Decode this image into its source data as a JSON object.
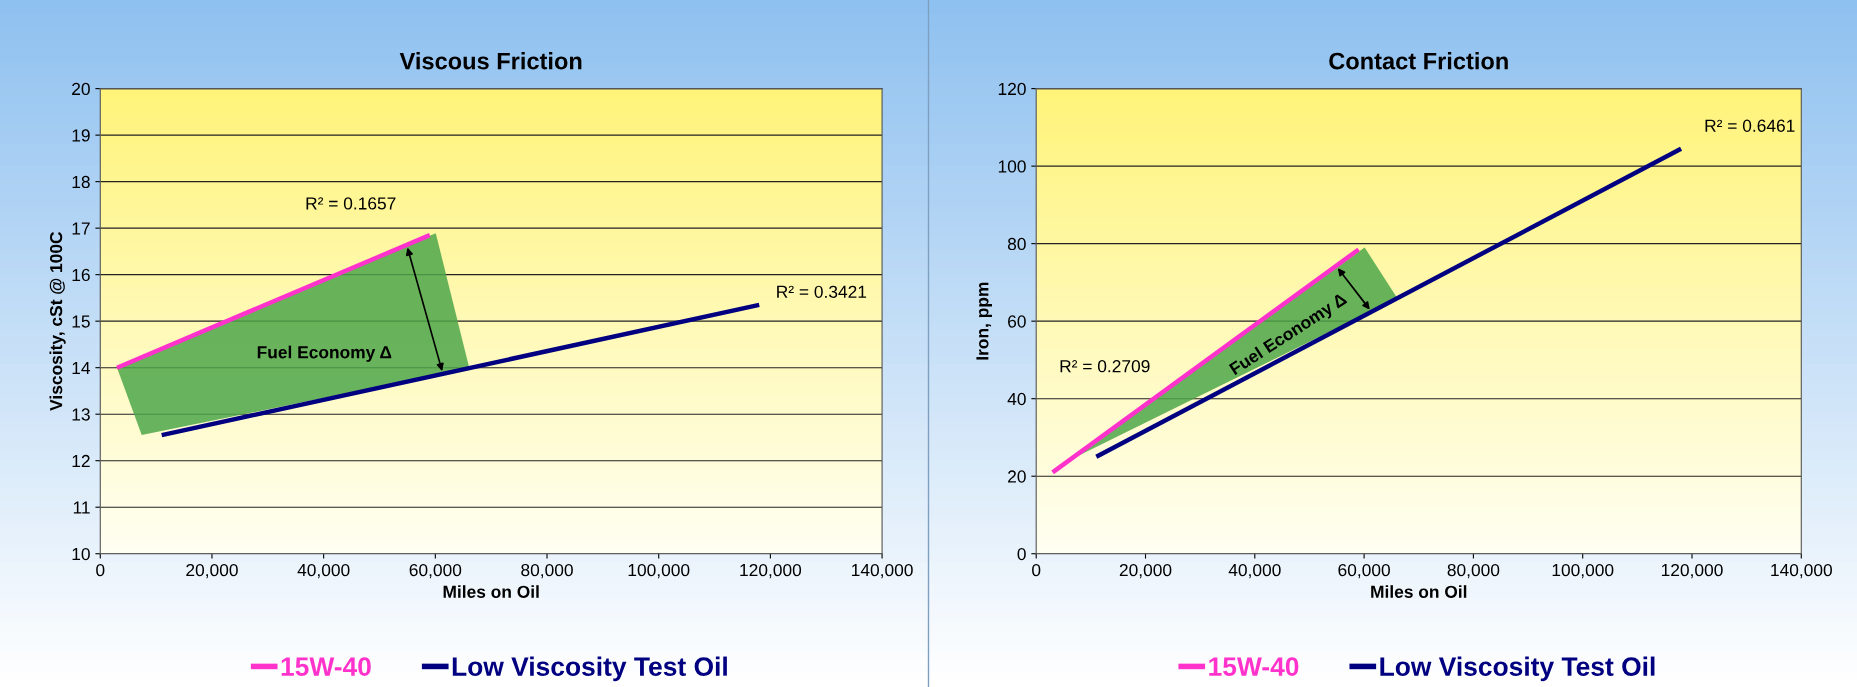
{
  "chart_data": [
    {
      "type": "line",
      "title": "Viscous Friction",
      "xlabel": "Miles on Oil",
      "ylabel": "Viscosity, cSt @ 100C",
      "series": [
        {
          "name": "15W-40",
          "color": "#ff33cc",
          "x": [
            3000,
            59000
          ],
          "values": [
            14.0,
            16.85
          ]
        },
        {
          "name": "Low Viscosity Test Oil",
          "color": "#000080",
          "x": [
            11000,
            118000
          ],
          "values": [
            12.55,
            15.35
          ]
        }
      ],
      "xlim": [
        0,
        140000
      ],
      "xticks": [
        {
          "value": 0,
          "label": "0"
        },
        {
          "value": 20000,
          "label": "20,000"
        },
        {
          "value": 40000,
          "label": "40,000"
        },
        {
          "value": 60000,
          "label": "60,000"
        },
        {
          "value": 80000,
          "label": "80,000"
        },
        {
          "value": 100000,
          "label": "100,000"
        },
        {
          "value": 120000,
          "label": "120,000"
        },
        {
          "value": 140000,
          "label": "140,000"
        }
      ],
      "ylim": [
        10,
        20
      ],
      "yticks": [
        10,
        11,
        12,
        13,
        14,
        15,
        16,
        17,
        18,
        19,
        20
      ],
      "grid": "y",
      "legend": "bottom",
      "marker": "none",
      "line_style": "solid",
      "annotations": [
        "R² = 0.1657",
        "R² = 0.3421",
        "Fuel Economy Δ"
      ]
    },
    {
      "type": "line",
      "title": "Contact Friction",
      "xlabel": "Miles on Oil",
      "ylabel": "Iron, ppm",
      "series": [
        {
          "name": "15W-40",
          "color": "#ff33cc",
          "x": [
            3000,
            59000
          ],
          "values": [
            21,
            78.5
          ]
        },
        {
          "name": "Low Viscosity Test Oil",
          "color": "#000080",
          "x": [
            11000,
            118000
          ],
          "values": [
            25,
            104.5
          ]
        }
      ],
      "xlim": [
        0,
        140000
      ],
      "xticks": [
        {
          "value": 0,
          "label": "0"
        },
        {
          "value": 20000,
          "label": "20,000"
        },
        {
          "value": 40000,
          "label": "40,000"
        },
        {
          "value": 60000,
          "label": "60,000"
        },
        {
          "value": 80000,
          "label": "80,000"
        },
        {
          "value": 100000,
          "label": "100,000"
        },
        {
          "value": 120000,
          "label": "120,000"
        },
        {
          "value": 140000,
          "label": "140,000"
        }
      ],
      "ylim": [
        0,
        120
      ],
      "yticks": [
        0,
        20,
        40,
        60,
        80,
        100,
        120
      ],
      "grid": "y",
      "legend": "bottom",
      "marker": "none",
      "line_style": "solid",
      "annotations": [
        "R² = 0.2709",
        "R² = 0.6461",
        "Fuel Economy Δ"
      ]
    }
  ]
}
